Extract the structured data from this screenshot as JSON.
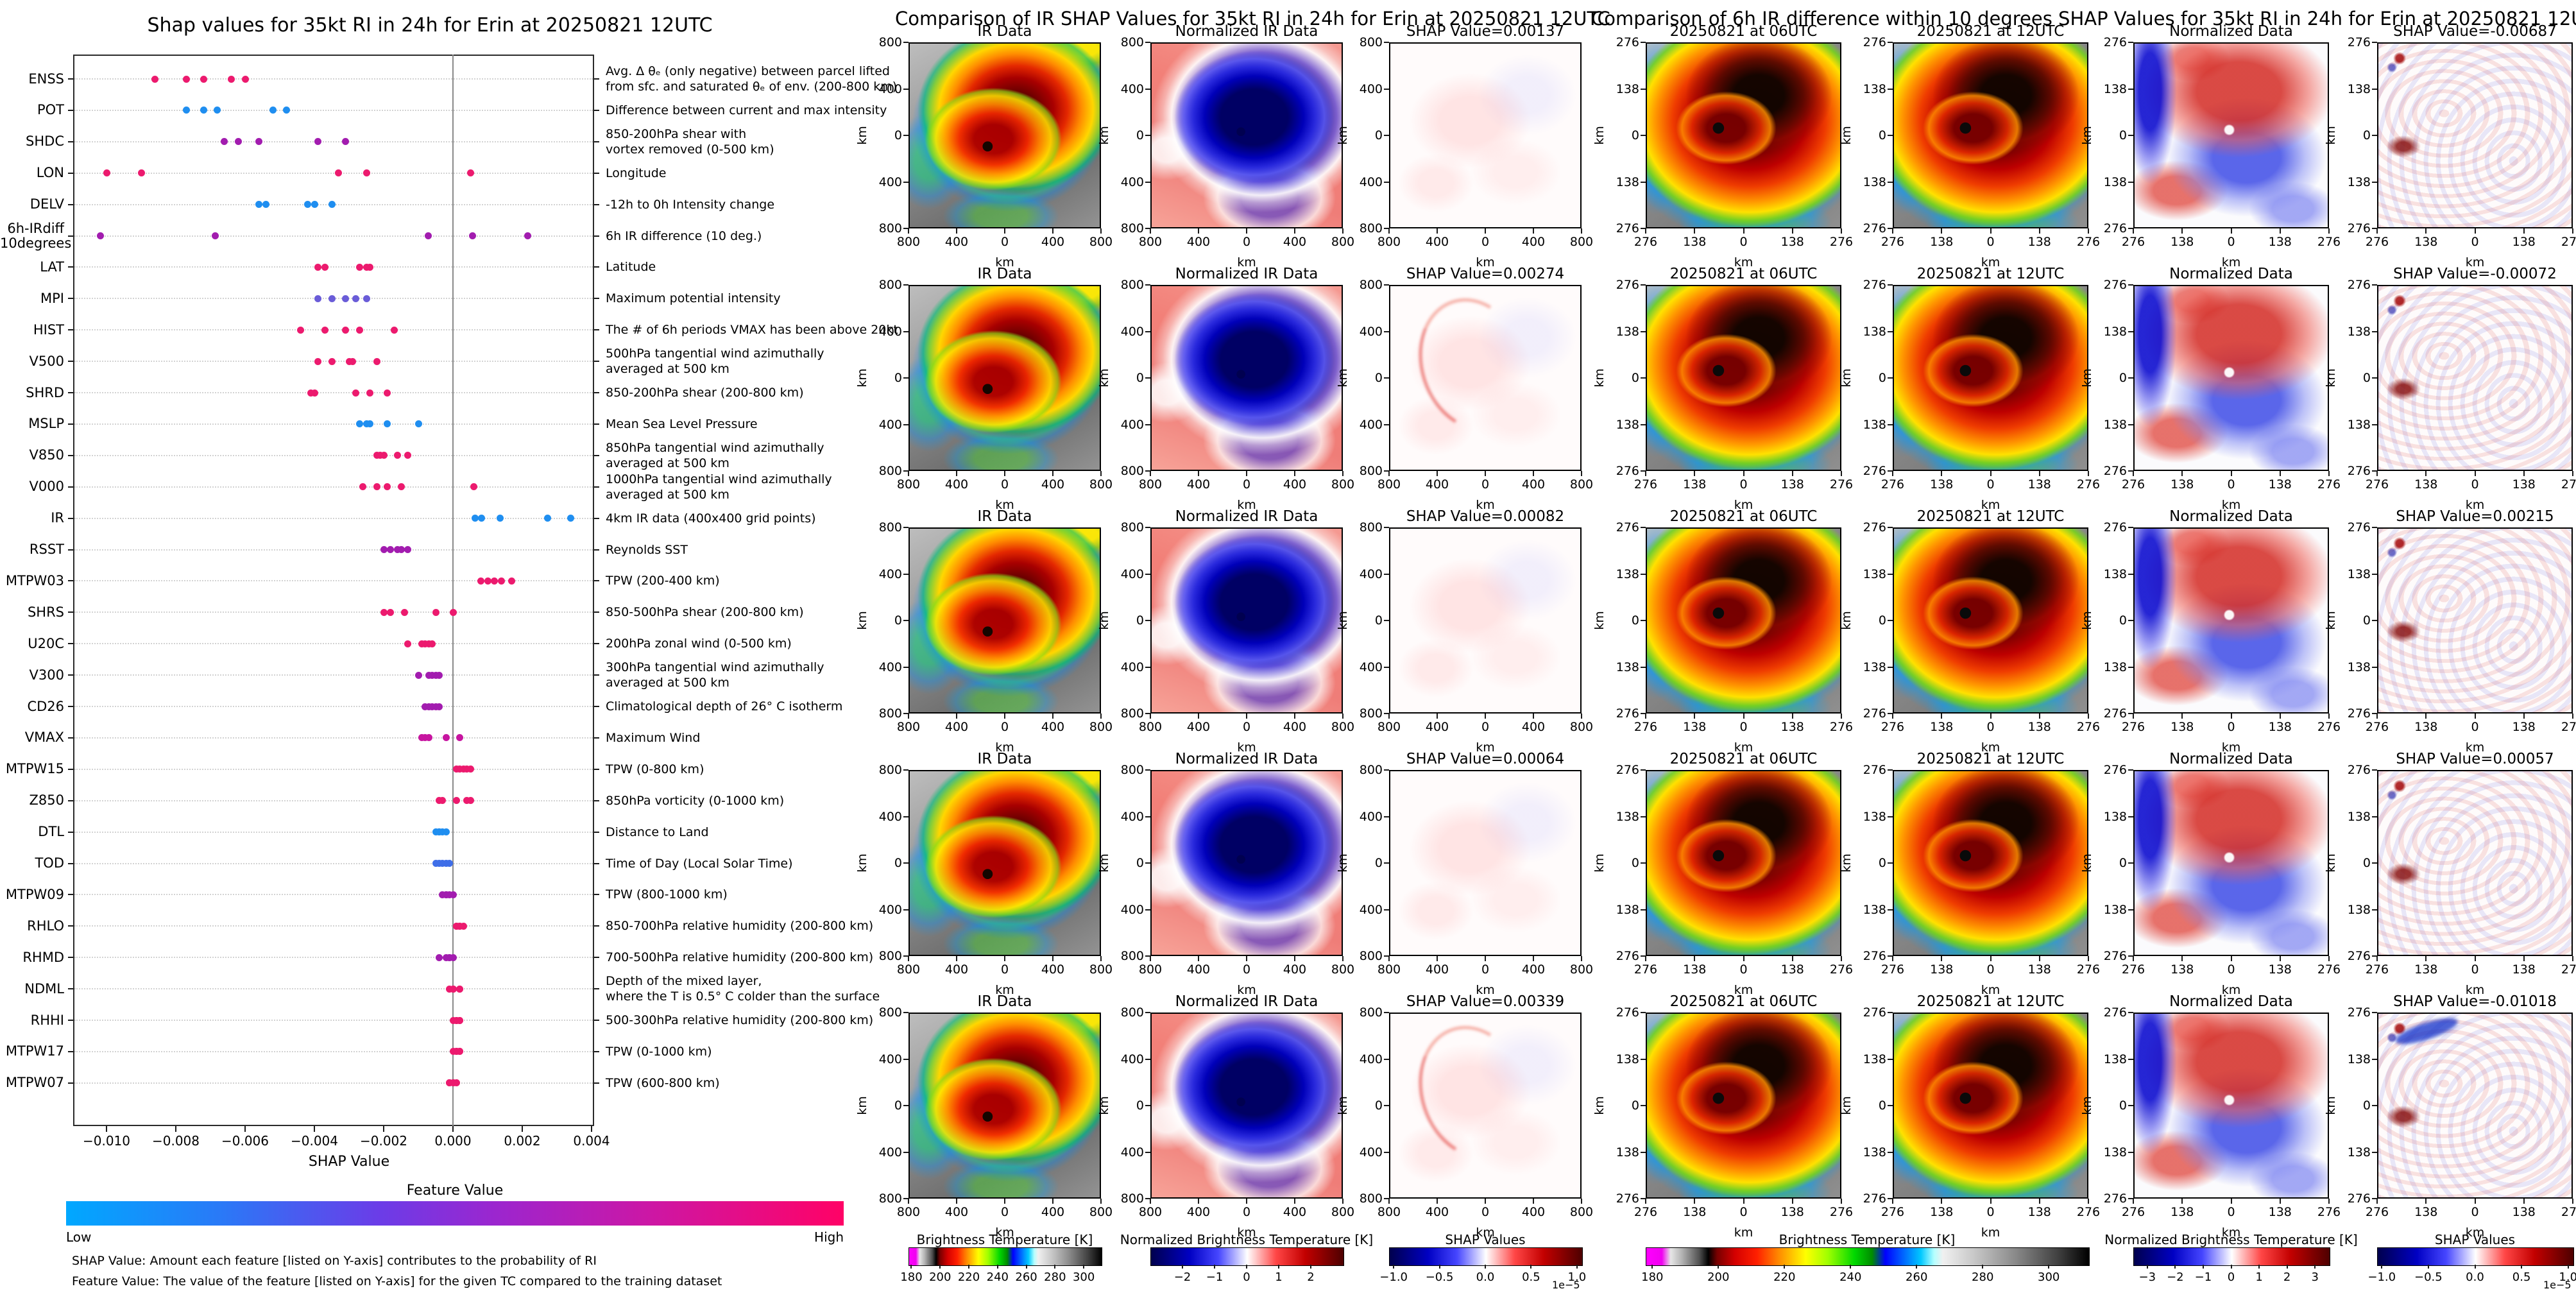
{
  "left_panel": {
    "title": "Shap values for 35kt RI in 24h for Erin at 20250821 12UTC",
    "xlabel": "SHAP Value",
    "xtick_labels": [
      "−0.010",
      "−0.008",
      "−0.006",
      "−0.004",
      "−0.002",
      "0.000",
      "0.002",
      "0.004"
    ],
    "xtick_values": [
      -0.01,
      -0.008,
      -0.006,
      -0.004,
      -0.002,
      0.0,
      0.002,
      0.004
    ],
    "colorbar": {
      "title": "Feature Value",
      "low_label": "Low",
      "high_label": "High",
      "left_color": "#00a8ff",
      "mid_color": "#9b26cf",
      "right_color": "#ff0266"
    },
    "footnote_shap": "SHAP Value: Amount each feature [listed on Y-axis] contributes to the probability of RI",
    "footnote_feature": "Feature Value: The value of the feature [listed on Y-axis] for the given TC compared to the training dataset"
  },
  "middle_panel": {
    "title": "Comparison of IR SHAP Values for 35kt RI in 24h for Erin at 20250821 12UTC",
    "col_titles": [
      "IR Data",
      "Normalized IR Data"
    ],
    "shap_titles": [
      "SHAP Value=0.00137",
      "SHAP Value=0.00274",
      "SHAP Value=0.00082",
      "SHAP Value=0.00064",
      "SHAP Value=0.00339"
    ],
    "ytick_labels": [
      "800",
      "400",
      "0",
      "400",
      "800"
    ],
    "xtick_labels": [
      "800",
      "400",
      "0",
      "400",
      "800"
    ],
    "axis_unit": "km",
    "colorbars": [
      {
        "title": "Brightness Temperature [K]",
        "style": "ir",
        "range": [
          178,
          312
        ],
        "ticks": [
          "180",
          "200",
          "220",
          "240",
          "260",
          "280",
          "300"
        ],
        "tick_values": [
          180,
          200,
          220,
          240,
          260,
          280,
          300
        ]
      },
      {
        "title": "Normalized Brightness Temperature [K]",
        "style": "bwr",
        "range": [
          -3,
          3
        ],
        "ticks": [
          "−2",
          "−1",
          "0",
          "1",
          "2"
        ],
        "tick_values": [
          -2,
          -1,
          0,
          1,
          2
        ]
      },
      {
        "title": "SHAP Values",
        "style": "bwr",
        "range": [
          -1.05,
          1.05
        ],
        "ticks": [
          "−1.0",
          "−0.5",
          "0.0",
          "0.5",
          "1.0"
        ],
        "tick_values": [
          -1,
          -0.5,
          0,
          0.5,
          1
        ],
        "exponent": "1e−5"
      }
    ]
  },
  "right_panel": {
    "title": "Comparison of 6h IR difference within 10 degrees SHAP Values for 35kt RI in 24h for Erin at 20250821 12UTC",
    "col_titles": [
      "20250821 at 06UTC",
      "20250821 at 12UTC",
      "Normalized Data"
    ],
    "shap_titles": [
      "SHAP Value=-0.00687",
      "SHAP Value=-0.00072",
      "SHAP Value=0.00215",
      "SHAP Value=0.00057",
      "SHAP Value=-0.01018"
    ],
    "ytick_labels": [
      "276",
      "138",
      "0",
      "138",
      "276"
    ],
    "xtick_labels": [
      "276",
      "138",
      "0",
      "138",
      "276"
    ],
    "axis_unit": "km",
    "colorbars": [
      {
        "title": "Brightness Temperature [K]",
        "style": "ir",
        "range": [
          178,
          312
        ],
        "ticks": [
          "180",
          "200",
          "220",
          "240",
          "260",
          "280",
          "300"
        ],
        "tick_values": [
          180,
          200,
          220,
          240,
          260,
          280,
          300
        ]
      },
      {
        "title": "Normalized Brightness Temperature [K]",
        "style": "bwr",
        "range": [
          -3.5,
          3.5
        ],
        "ticks": [
          "−3",
          "−2",
          "−1",
          "0",
          "1",
          "2",
          "3"
        ],
        "tick_values": [
          -3,
          -2,
          -1,
          0,
          1,
          2,
          3
        ]
      },
      {
        "title": "SHAP Values",
        "style": "bwr",
        "range": [
          -1.05,
          1.05
        ],
        "ticks": [
          "−1.0",
          "−0.5",
          "0.0",
          "0.5",
          "1.0"
        ],
        "tick_values": [
          -1,
          -0.5,
          0,
          0.5,
          1
        ],
        "exponent": "1e−5"
      }
    ]
  },
  "chart_data": [
    {
      "type": "scatter",
      "subtype": "shap-beeswarm-strip",
      "title": "Shap values for 35kt RI in 24h for Erin at 20250821 12UTC",
      "xlabel": "SHAP Value",
      "xlim": [
        -0.0108,
        0.0042
      ],
      "grid": true,
      "colorbar": {
        "title": "Feature Value",
        "low": "Low",
        "high": "High"
      },
      "features": [
        {
          "code": "ENSS",
          "desc": [
            "Avg. Δ θₑ (only negative) between parcel lifted",
            "from sfc. and saturated θₑ of env. (200-800 km)"
          ],
          "color": "#ec1a6e",
          "shap_values": [
            -0.0086,
            -0.0077,
            -0.0072,
            -0.0064,
            -0.006
          ]
        },
        {
          "code": "POT",
          "desc": [
            "Difference between current and max intensity"
          ],
          "color": "#1f8ef0",
          "shap_values": [
            -0.0077,
            -0.0072,
            -0.0068,
            -0.0052,
            -0.0048
          ]
        },
        {
          "code": "SHDC",
          "desc": [
            "850-200hPa shear with",
            "vortex removed (0-500 km)"
          ],
          "color": "#a21caf",
          "shap_values": [
            -0.0066,
            -0.0062,
            -0.0056,
            -0.0039,
            -0.0031
          ]
        },
        {
          "code": "LON",
          "desc": [
            "Longitude"
          ],
          "color": "#ec1a6e",
          "shap_values": [
            -0.01,
            -0.009,
            -0.0033,
            -0.0025,
            0.0005
          ]
        },
        {
          "code": "DELV",
          "desc": [
            "-12h to 0h Intensity change"
          ],
          "color": "#1f8ef0",
          "shap_values": [
            -0.0056,
            -0.0054,
            -0.0042,
            -0.004,
            -0.0035
          ]
        },
        {
          "code": "6h-IRdiff\n10degrees",
          "desc": [
            "6h IR difference (10 deg.)"
          ],
          "color": "#a21caf",
          "shap_values": [
            -0.01018,
            -0.00687,
            -0.00072,
            0.00057,
            0.00215
          ]
        },
        {
          "code": "LAT",
          "desc": [
            "Latitude"
          ],
          "color": "#ec1a6e",
          "shap_values": [
            -0.0039,
            -0.0037,
            -0.0027,
            -0.0025,
            -0.0024
          ]
        },
        {
          "code": "MPI",
          "desc": [
            "Maximum potential intensity"
          ],
          "color": "#6a5cd8",
          "shap_values": [
            -0.0039,
            -0.0035,
            -0.0031,
            -0.0028,
            -0.0025
          ]
        },
        {
          "code": "HIST",
          "desc": [
            "The # of 6h periods VMAX has been above 20kt"
          ],
          "color": "#ec1a6e",
          "shap_values": [
            -0.0044,
            -0.0037,
            -0.0031,
            -0.0027,
            -0.0017
          ]
        },
        {
          "code": "V500",
          "desc": [
            "500hPa tangential wind azimuthally",
            "averaged at 500 km"
          ],
          "color": "#ec1a6e",
          "shap_values": [
            -0.0039,
            -0.0035,
            -0.003,
            -0.0029,
            -0.0022
          ]
        },
        {
          "code": "SHRD",
          "desc": [
            "850-200hPa shear (200-800 km)"
          ],
          "color": "#ec1a6e",
          "shap_values": [
            -0.0041,
            -0.004,
            -0.0028,
            -0.0024,
            -0.0019
          ]
        },
        {
          "code": "MSLP",
          "desc": [
            "Mean Sea Level Pressure"
          ],
          "color": "#1f8ef0",
          "shap_values": [
            -0.0027,
            -0.0025,
            -0.0024,
            -0.0019,
            -0.001
          ]
        },
        {
          "code": "V850",
          "desc": [
            "850hPa tangential wind azimuthally",
            "averaged at 500 km"
          ],
          "color": "#ec1a6e",
          "shap_values": [
            -0.0022,
            -0.0021,
            -0.002,
            -0.0016,
            -0.0013
          ]
        },
        {
          "code": "V000",
          "desc": [
            "1000hPa tangential wind azimuthally",
            "averaged at 500 km"
          ],
          "color": "#ec1a6e",
          "shap_values": [
            -0.0026,
            -0.0022,
            -0.0019,
            -0.0015,
            0.0006
          ]
        },
        {
          "code": "IR",
          "desc": [
            "4km IR data (400x400 grid points)"
          ],
          "color": "#1f8ef0",
          "shap_values": [
            0.00064,
            0.00082,
            0.00137,
            0.00274,
            0.00339
          ]
        },
        {
          "code": "RSST",
          "desc": [
            "Reynolds SST"
          ],
          "color": "#a21caf",
          "shap_values": [
            -0.002,
            -0.0018,
            -0.0016,
            -0.0015,
            -0.0013
          ]
        },
        {
          "code": "MTPW03",
          "desc": [
            "TPW (200-400 km)"
          ],
          "color": "#ec1a6e",
          "shap_values": [
            0.0008,
            0.001,
            0.0012,
            0.0014,
            0.0017
          ]
        },
        {
          "code": "SHRS",
          "desc": [
            "850-500hPa shear (200-800 km)"
          ],
          "color": "#ec1a6e",
          "shap_values": [
            -0.002,
            -0.0018,
            -0.0014,
            -0.0005,
            0.0
          ]
        },
        {
          "code": "U20C",
          "desc": [
            "200hPa zonal wind (0-500 km)"
          ],
          "color": "#ec1a6e",
          "shap_values": [
            -0.0013,
            -0.0009,
            -0.0008,
            -0.0007,
            -0.0006
          ]
        },
        {
          "code": "V300",
          "desc": [
            "300hPa tangential wind azimuthally",
            "averaged at 500 km"
          ],
          "color": "#a21caf",
          "shap_values": [
            -0.001,
            -0.0007,
            -0.0006,
            -0.0005,
            -0.0004
          ]
        },
        {
          "code": "CD26",
          "desc": [
            "Climatological depth of 26° C isotherm"
          ],
          "color": "#a21caf",
          "shap_values": [
            -0.0008,
            -0.0007,
            -0.0006,
            -0.0005,
            -0.0004
          ]
        },
        {
          "code": "VMAX",
          "desc": [
            "Maximum Wind"
          ],
          "color": "#c715a0",
          "shap_values": [
            -0.0009,
            -0.0008,
            -0.0007,
            -0.0002,
            0.0002
          ]
        },
        {
          "code": "MTPW15",
          "desc": [
            "TPW (0-800 km)"
          ],
          "color": "#ec1a6e",
          "shap_values": [
            0.0001,
            0.0002,
            0.0003,
            0.0004,
            0.0005
          ]
        },
        {
          "code": "Z850",
          "desc": [
            "850hPa vorticity (0-1000 km)"
          ],
          "color": "#ec1a6e",
          "shap_values": [
            -0.0004,
            -0.0003,
            0.0001,
            0.0004,
            0.0005
          ]
        },
        {
          "code": "DTL",
          "desc": [
            "Distance to Land"
          ],
          "color": "#1f8ef0",
          "shap_values": [
            -0.0005,
            -0.0004,
            -0.0004,
            -0.0003,
            -0.0002
          ]
        },
        {
          "code": "TOD",
          "desc": [
            "Time of Day (Local Solar Time)"
          ],
          "color": "#3f6ee8",
          "shap_values": [
            -0.0005,
            -0.0004,
            -0.0003,
            -0.0002,
            -0.0001
          ]
        },
        {
          "code": "MTPW09",
          "desc": [
            "TPW (800-1000 km)"
          ],
          "color": "#a21caf",
          "shap_values": [
            -0.0003,
            -0.0002,
            -0.0002,
            -0.0001,
            0.0
          ]
        },
        {
          "code": "RHLO",
          "desc": [
            "850-700hPa relative humidity (200-800 km)"
          ],
          "color": "#ec1a6e",
          "shap_values": [
            0.0001,
            0.0001,
            0.0002,
            0.0002,
            0.0003
          ]
        },
        {
          "code": "RHMD",
          "desc": [
            "700-500hPa relative humidity (200-800 km)"
          ],
          "color": "#a21caf",
          "shap_values": [
            -0.0004,
            -0.0002,
            -0.0001,
            -0.0001,
            0.0
          ]
        },
        {
          "code": "NDML",
          "desc": [
            "Depth of the mixed layer,",
            "where the T is 0.5° C colder than the surface"
          ],
          "color": "#ec1a6e",
          "shap_values": [
            -0.0001,
            0.0,
            0.0,
            0.0002,
            0.0002
          ]
        },
        {
          "code": "RHHI",
          "desc": [
            "500-300hPa relative humidity (200-800 km)"
          ],
          "color": "#ec1a6e",
          "shap_values": [
            0.0,
            0.0001,
            0.0001,
            0.0002,
            0.0002
          ]
        },
        {
          "code": "MTPW17",
          "desc": [
            "TPW (0-1000 km)"
          ],
          "color": "#ec1a6e",
          "shap_values": [
            0.0,
            0.0001,
            0.0001,
            0.0002,
            0.0002
          ]
        },
        {
          "code": "MTPW07",
          "desc": [
            "TPW (600-800 km)"
          ],
          "color": "#ec1a6e",
          "shap_values": [
            -0.0001,
            -0.0001,
            0.0,
            0.0,
            0.0001
          ]
        }
      ]
    },
    {
      "type": "heatmap",
      "title": "Comparison of IR SHAP Values for 35kt RI in 24h for Erin at 20250821 12UTC",
      "columns": [
        "IR Data",
        "Normalized IR Data",
        "SHAP Value"
      ],
      "rows": 5,
      "row_shap_values": [
        0.00137,
        0.00274,
        0.00082,
        0.00064,
        0.00339
      ],
      "axis_range_km": [
        -800,
        800
      ],
      "axis_ticks_km": [
        800,
        400,
        0,
        400,
        800
      ],
      "colorbar_ranges": {
        "brightness_temperature_K": [
          180,
          300
        ],
        "normalized_brightness_temperature_K": [
          -2,
          2
        ],
        "shap_values": [
          -1e-05,
          1e-05
        ]
      }
    },
    {
      "type": "heatmap",
      "title": "Comparison of 6h IR difference within 10 degrees SHAP Values for 35kt RI in 24h for Erin at 20250821 12UTC",
      "columns": [
        "20250821 at 06UTC",
        "20250821 at 12UTC",
        "Normalized Data",
        "SHAP Value"
      ],
      "rows": 5,
      "row_shap_values": [
        -0.00687,
        -0.00072,
        0.00215,
        0.00057,
        -0.01018
      ],
      "axis_range_km": [
        -276,
        276
      ],
      "axis_ticks_km": [
        276,
        138,
        0,
        138,
        276
      ],
      "colorbar_ranges": {
        "brightness_temperature_K": [
          180,
          300
        ],
        "normalized_brightness_temperature_K": [
          -3,
          3
        ],
        "shap_values": [
          -1e-05,
          1e-05
        ]
      }
    }
  ]
}
